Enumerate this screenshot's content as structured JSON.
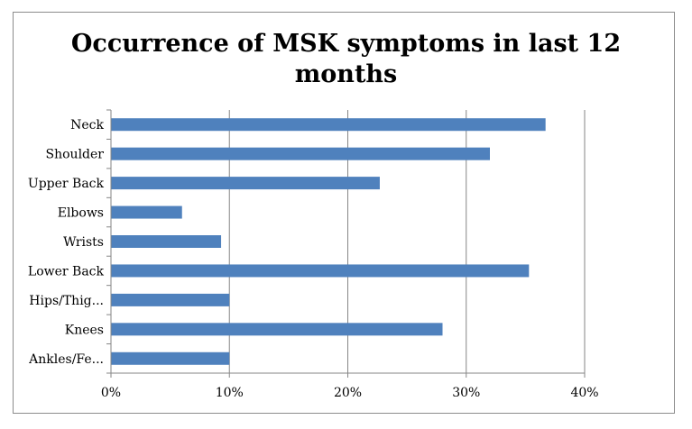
{
  "chart_data": {
    "type": "bar",
    "orientation": "horizontal",
    "title_lines": [
      "Occurrence of MSK symptoms in last 12",
      "months"
    ],
    "xlabel": "",
    "ylabel": "",
    "categories": [
      "Neck",
      "Shoulder",
      "Upper Back",
      "Elbows",
      "Wrists",
      "Lower Back",
      "Hips/Thig...",
      "Knees",
      "Ankles/Fe..."
    ],
    "values": [
      0.367,
      0.32,
      0.227,
      0.06,
      0.093,
      0.353,
      0.1,
      0.28,
      0.1
    ],
    "xlim": [
      0,
      0.4
    ],
    "xticks": [
      0,
      0.1,
      0.2,
      0.3,
      0.4
    ],
    "xtick_labels": [
      "0%",
      "10%",
      "20%",
      "30%",
      "40%"
    ],
    "grid": true,
    "legend": "none",
    "bar_color": "#4f81bd",
    "grid_color": "#868686"
  }
}
